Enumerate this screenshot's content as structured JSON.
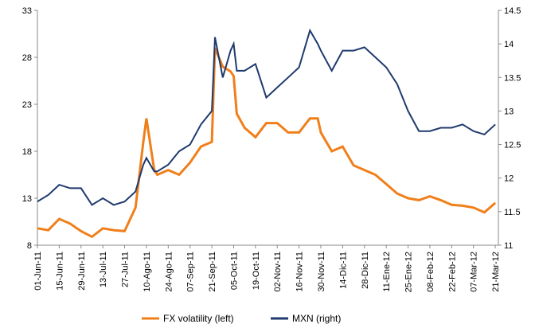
{
  "chart_data": {
    "type": "line",
    "x": [
      "2011-06-01",
      "2011-06-08",
      "2011-06-15",
      "2011-06-22",
      "2011-06-29",
      "2011-07-06",
      "2011-07-13",
      "2011-07-20",
      "2011-07-27",
      "2011-08-03",
      "2011-08-08",
      "2011-08-10",
      "2011-08-15",
      "2011-08-17",
      "2011-08-24",
      "2011-08-31",
      "2011-09-07",
      "2011-09-14",
      "2011-09-21",
      "2011-09-23",
      "2011-09-28",
      "2011-10-03",
      "2011-10-05",
      "2011-10-07",
      "2011-10-12",
      "2011-10-19",
      "2011-10-26",
      "2011-11-02",
      "2011-11-09",
      "2011-11-16",
      "2011-11-23",
      "2011-11-28",
      "2011-11-30",
      "2011-12-07",
      "2011-12-14",
      "2011-12-21",
      "2011-12-28",
      "2012-01-04",
      "2012-01-11",
      "2012-01-18",
      "2012-01-25",
      "2012-02-01",
      "2012-02-08",
      "2012-02-15",
      "2012-02-22",
      "2012-02-29",
      "2012-03-07",
      "2012-03-14",
      "2012-03-21"
    ],
    "series": [
      {
        "name": "FX volatility (left)",
        "color": "#f07f1a",
        "axis": "y",
        "values": [
          9.8,
          9.6,
          10.8,
          10.3,
          9.5,
          8.9,
          9.8,
          9.6,
          9.5,
          12,
          19,
          21.5,
          16,
          15.5,
          16,
          15.5,
          16.8,
          18.5,
          19,
          29,
          27,
          26.5,
          26,
          22,
          20.5,
          19.5,
          21,
          21,
          20,
          20,
          21.5,
          21.5,
          20,
          18,
          18.5,
          16.5,
          16,
          15.5,
          14.5,
          13.5,
          13,
          12.8,
          13.2,
          12.8,
          12.3,
          12.2,
          12.0,
          11.5,
          12.5
        ]
      },
      {
        "name": "MXN (right)",
        "color": "#1f3a6e",
        "axis": "y2",
        "values": [
          11.65,
          11.75,
          11.9,
          11.85,
          11.85,
          11.6,
          11.7,
          11.6,
          11.65,
          11.8,
          12.2,
          12.3,
          12.1,
          12.1,
          12.2,
          12.4,
          12.5,
          12.8,
          13.0,
          14.1,
          13.5,
          13.9,
          14.0,
          13.6,
          13.6,
          13.7,
          13.2,
          13.35,
          13.5,
          13.65,
          14.2,
          14.0,
          13.9,
          13.6,
          13.9,
          13.9,
          13.95,
          13.8,
          13.65,
          13.4,
          13.0,
          12.7,
          12.7,
          12.75,
          12.75,
          12.8,
          12.7,
          12.65,
          12.8
        ]
      }
    ],
    "xlim": [
      "2011-06-01",
      "2012-03-23"
    ],
    "xticks": [
      {
        "value": "2011-06-01",
        "label": "01-Jun-11"
      },
      {
        "value": "2011-06-15",
        "label": "15-Jun-11"
      },
      {
        "value": "2011-06-29",
        "label": "29-Jun-11"
      },
      {
        "value": "2011-07-13",
        "label": "13-Jul-11"
      },
      {
        "value": "2011-07-27",
        "label": "27-Jul-11"
      },
      {
        "value": "2011-08-10",
        "label": "10-Ago-11"
      },
      {
        "value": "2011-08-24",
        "label": "24-Ago-11"
      },
      {
        "value": "2011-09-07",
        "label": "07-Sep-11"
      },
      {
        "value": "2011-09-21",
        "label": "21-Sep-11"
      },
      {
        "value": "2011-10-05",
        "label": "05-Oct-11"
      },
      {
        "value": "2011-10-19",
        "label": "19-Oct-11"
      },
      {
        "value": "2011-11-02",
        "label": "02-Nov-11"
      },
      {
        "value": "2011-11-16",
        "label": "16-Nov-11"
      },
      {
        "value": "2011-11-30",
        "label": "30-Nov-11"
      },
      {
        "value": "2011-12-14",
        "label": "14-Dic-11"
      },
      {
        "value": "2011-12-28",
        "label": "28-Dic-11"
      },
      {
        "value": "2012-01-11",
        "label": "11-Ene-12"
      },
      {
        "value": "2012-01-25",
        "label": "25-Ene-12"
      },
      {
        "value": "2012-02-08",
        "label": "08-Feb-12"
      },
      {
        "value": "2012-02-22",
        "label": "22-Feb-12"
      },
      {
        "value": "2012-03-07",
        "label": "07-Mar-12"
      },
      {
        "value": "2012-03-21",
        "label": "21-Mar-12"
      }
    ],
    "ylim": [
      8,
      33
    ],
    "yticks": [
      8,
      13,
      18,
      23,
      28,
      33
    ],
    "y2lim": [
      11,
      14.5
    ],
    "y2ticks": [
      11,
      11.5,
      12,
      12.5,
      13,
      13.5,
      14,
      14.5
    ],
    "grid": false,
    "legend": "bottom"
  }
}
